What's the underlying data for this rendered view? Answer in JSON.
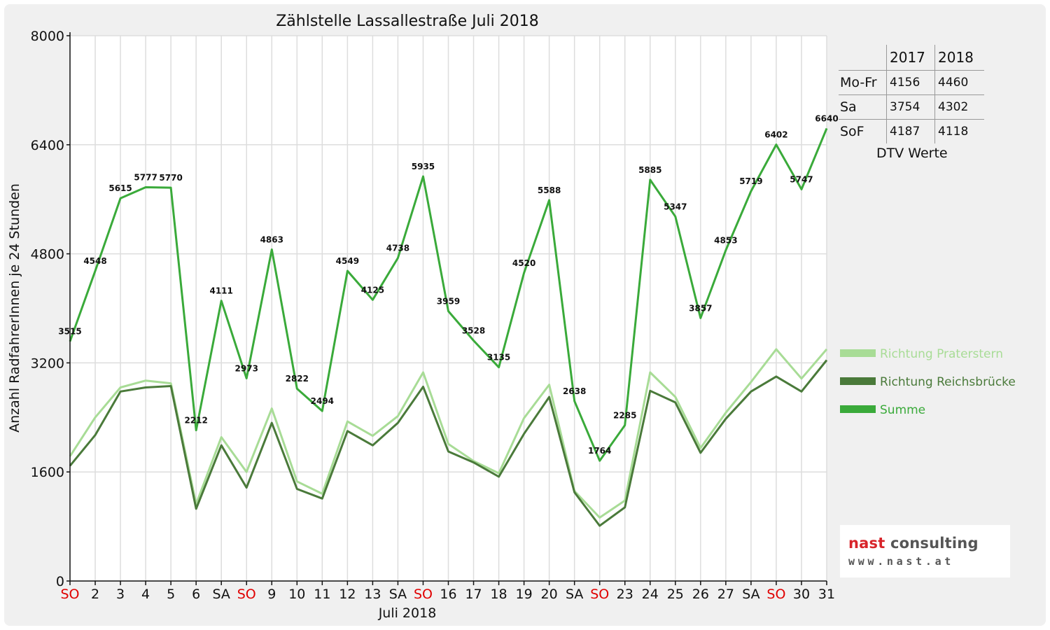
{
  "chart_data": {
    "type": "line",
    "title": "Zählstelle Lassallestraße Juli 2018",
    "xlabel": "Juli 2018",
    "ylabel": "Anzahl RadfahrerInnen je 24 Stunden",
    "ylim": [
      0,
      8000
    ],
    "yticks": [
      0,
      1600,
      3200,
      4800,
      6400,
      8000
    ],
    "grid": true,
    "legend_position": "right",
    "categories": [
      "SO",
      "2",
      "3",
      "4",
      "5",
      "6",
      "SA",
      "SO",
      "9",
      "10",
      "11",
      "12",
      "13",
      "SA",
      "SO",
      "16",
      "17",
      "18",
      "19",
      "20",
      "SA",
      "SO",
      "23",
      "24",
      "25",
      "26",
      "27",
      "SA",
      "SO",
      "30",
      "31"
    ],
    "highlight_categories": [
      "SO"
    ],
    "series": [
      {
        "name": "Richtung Praterstern",
        "color": "#a8dc96",
        "values": [
          1830,
          2400,
          2840,
          2940,
          2900,
          1130,
          2110,
          1600,
          2530,
          1460,
          1280,
          2340,
          2130,
          2420,
          3060,
          2010,
          1760,
          1580,
          2390,
          2880,
          1320,
          930,
          1180,
          3060,
          2700,
          1950,
          2470,
          2920,
          3400,
          2970,
          3400
        ]
      },
      {
        "name": "Richtung Reichsbrücke",
        "color": "#4a7a3a",
        "values": [
          1690,
          2140,
          2780,
          2840,
          2860,
          1060,
          1990,
          1370,
          2320,
          1350,
          1210,
          2200,
          1990,
          2320,
          2850,
          1900,
          1740,
          1530,
          2160,
          2700,
          1300,
          810,
          1080,
          2790,
          2620,
          1880,
          2380,
          2780,
          3000,
          2780,
          3240
        ]
      },
      {
        "name": "Summe",
        "color": "#3aaa3a",
        "values": [
          3515,
          4548,
          5615,
          5777,
          5770,
          2212,
          4111,
          2973,
          4863,
          2822,
          2494,
          4549,
          4125,
          4738,
          5935,
          3959,
          3528,
          3135,
          4520,
          5588,
          2638,
          1764,
          2285,
          5885,
          5347,
          3857,
          4853,
          5719,
          6402,
          5747,
          6640
        ],
        "data_labels": [
          "3515",
          "4548",
          "5615",
          "5777",
          "5770",
          "2212",
          "4111",
          "2973",
          "4863",
          "2822",
          "2494",
          "4549",
          "4125",
          "4738",
          "5935",
          "3959",
          "3528",
          "3135",
          "4520",
          "5588",
          "2638",
          "1764",
          "2285",
          "5885",
          "5347",
          "3857",
          "4853",
          "5719",
          "6402",
          "5747",
          "6640"
        ]
      }
    ]
  },
  "dtv_table": {
    "caption": "DTV Werte",
    "header": [
      "",
      "2017",
      "2018"
    ],
    "rows": [
      {
        "label": "Mo-Fr",
        "v2017": "4156",
        "v2018": "4460"
      },
      {
        "label": "Sa",
        "v2017": "3754",
        "v2018": "4302"
      },
      {
        "label": "SoF",
        "v2017": "4187",
        "v2018": "4118"
      }
    ]
  },
  "logo": {
    "word1": "nast",
    "word2": " consulting",
    "url": "www.nast.at"
  }
}
